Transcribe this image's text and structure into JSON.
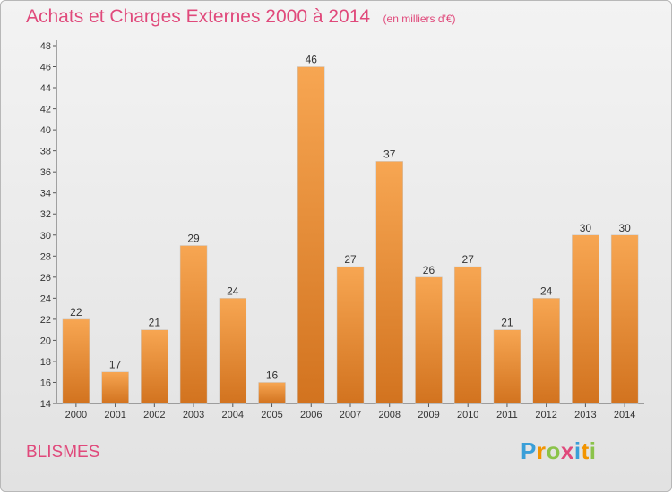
{
  "chart_data": {
    "type": "bar",
    "title": "Achats et Charges Externes 2000 à 2014",
    "unit": "(en milliers d'€)",
    "categories": [
      "2000",
      "2001",
      "2002",
      "2003",
      "2004",
      "2005",
      "2006",
      "2007",
      "2008",
      "2009",
      "2010",
      "2011",
      "2012",
      "2013",
      "2014"
    ],
    "values": [
      22,
      17,
      21,
      29,
      24,
      16,
      46,
      27,
      37,
      26,
      27,
      21,
      24,
      30,
      30
    ],
    "ylim": [
      14,
      48
    ],
    "ytick_step": 2,
    "grid": false,
    "bar_color_top": "#f7a652",
    "bar_color_bottom": "#d2731f"
  },
  "place": "BLISMES",
  "logo": {
    "letters": [
      "P",
      "r",
      "o",
      "x",
      "i",
      "t",
      "i"
    ],
    "colors": [
      "#3a9fd8",
      "#f29400",
      "#8bc34a",
      "#e0497b",
      "#3a9fd8",
      "#f29400",
      "#8bc34a"
    ]
  }
}
